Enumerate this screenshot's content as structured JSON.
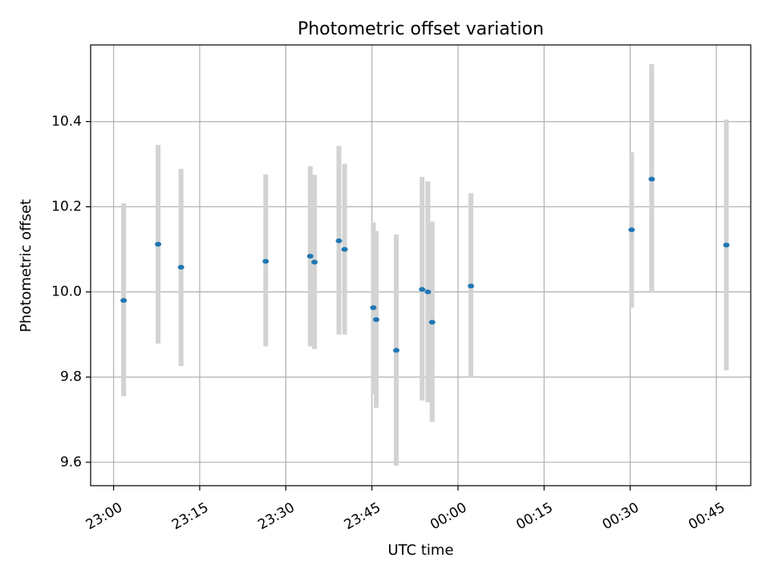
{
  "chart_data": {
    "type": "scatter",
    "title": "Photometric offset variation",
    "xlabel": "UTC time",
    "ylabel": "Photometric offset",
    "x_axis": {
      "kind": "time",
      "range": [
        "22:56",
        "00:51"
      ],
      "ticks": [
        "23:00",
        "23:15",
        "23:30",
        "23:45",
        "00:00",
        "00:15",
        "00:30",
        "00:45"
      ]
    },
    "y_axis": {
      "range": [
        9.545,
        10.58
      ],
      "ticks": [
        "9.6",
        "9.8",
        "10.0",
        "10.2",
        "10.4"
      ]
    },
    "grid": true,
    "error_bar_color": "#d3d3d3",
    "marker_color": "#1f77b4",
    "points": [
      {
        "x": "23:01:45",
        "y": 9.98,
        "ylow": 9.755,
        "yhigh": 10.208
      },
      {
        "x": "23:07:45",
        "y": 10.112,
        "ylow": 9.879,
        "yhigh": 10.345
      },
      {
        "x": "23:11:45",
        "y": 10.058,
        "ylow": 9.826,
        "yhigh": 10.289
      },
      {
        "x": "23:26:30",
        "y": 10.072,
        "ylow": 9.872,
        "yhigh": 10.276
      },
      {
        "x": "23:34:15",
        "y": 10.084,
        "ylow": 9.872,
        "yhigh": 10.295
      },
      {
        "x": "23:35:00",
        "y": 10.07,
        "ylow": 9.866,
        "yhigh": 10.275
      },
      {
        "x": "23:39:15",
        "y": 10.12,
        "ylow": 9.9,
        "yhigh": 10.343
      },
      {
        "x": "23:40:15",
        "y": 10.1,
        "ylow": 9.9,
        "yhigh": 10.301
      },
      {
        "x": "23:45:15",
        "y": 9.963,
        "ylow": 9.76,
        "yhigh": 10.163
      },
      {
        "x": "23:45:45",
        "y": 9.935,
        "ylow": 9.728,
        "yhigh": 10.143
      },
      {
        "x": "23:49:15",
        "y": 9.863,
        "ylow": 9.592,
        "yhigh": 10.135
      },
      {
        "x": "23:53:45",
        "y": 10.006,
        "ylow": 9.745,
        "yhigh": 10.27
      },
      {
        "x": "23:54:45",
        "y": 10.0,
        "ylow": 9.741,
        "yhigh": 10.26
      },
      {
        "x": "23:55:30",
        "y": 9.929,
        "ylow": 9.695,
        "yhigh": 10.165
      },
      {
        "x": "00:02:15",
        "y": 10.014,
        "ylow": 9.8,
        "yhigh": 10.232
      },
      {
        "x": "00:30:15",
        "y": 10.146,
        "ylow": 9.963,
        "yhigh": 10.328
      },
      {
        "x": "00:33:45",
        "y": 10.265,
        "ylow": 9.998,
        "yhigh": 10.535
      },
      {
        "x": "00:46:45",
        "y": 10.11,
        "ylow": 9.816,
        "yhigh": 10.405
      }
    ]
  }
}
